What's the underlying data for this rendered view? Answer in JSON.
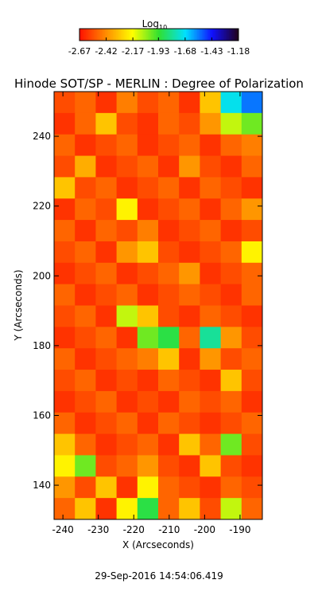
{
  "chart_data": {
    "type": "heatmap",
    "title": "Hinode SOT/SP - MERLIN : Degree of Polarization",
    "x_label": "X (Arcseconds)",
    "y_label": "Y (Arcseconds)",
    "footer": "29-Sep-2016 14:54:06.419",
    "xlim": [
      -242.5,
      -183.7
    ],
    "ylim": [
      130.2,
      252.8
    ],
    "xticks": [
      -240,
      -230,
      -220,
      -210,
      -200,
      -190
    ],
    "yticks": [
      140,
      160,
      180,
      200,
      220,
      240
    ],
    "colorbar": {
      "label": "Log",
      "label_subscript": "10",
      "lim": [
        -2.67,
        -1.18
      ],
      "ticks": [
        -2.67,
        -2.42,
        -2.17,
        -1.93,
        -1.68,
        -1.43,
        -1.18
      ],
      "colormap": [
        "#ff1000",
        "#ff8c00",
        "#ffff00",
        "#30e030",
        "#00e0ff",
        "#1010ff",
        "#200018"
      ]
    },
    "z": [
      [
        -2.55,
        -2.5,
        -2.6,
        -2.45,
        -2.55,
        -2.5,
        -2.6,
        -2.3,
        -1.7,
        -1.55
      ],
      [
        -2.6,
        -2.5,
        -2.3,
        -2.55,
        -2.6,
        -2.5,
        -2.55,
        -2.4,
        -2.1,
        -2.0
      ],
      [
        -2.5,
        -2.6,
        -2.55,
        -2.5,
        -2.6,
        -2.55,
        -2.5,
        -2.6,
        -2.5,
        -2.45
      ],
      [
        -2.55,
        -2.35,
        -2.6,
        -2.55,
        -2.5,
        -2.6,
        -2.4,
        -2.55,
        -2.6,
        -2.5
      ],
      [
        -2.3,
        -2.55,
        -2.5,
        -2.6,
        -2.55,
        -2.5,
        -2.6,
        -2.5,
        -2.55,
        -2.6
      ],
      [
        -2.6,
        -2.5,
        -2.55,
        -2.2,
        -2.6,
        -2.55,
        -2.5,
        -2.6,
        -2.5,
        -2.4
      ],
      [
        -2.5,
        -2.6,
        -2.5,
        -2.55,
        -2.45,
        -2.6,
        -2.55,
        -2.5,
        -2.6,
        -2.55
      ],
      [
        -2.55,
        -2.5,
        -2.6,
        -2.4,
        -2.3,
        -2.55,
        -2.6,
        -2.55,
        -2.5,
        -2.2
      ],
      [
        -2.6,
        -2.55,
        -2.5,
        -2.6,
        -2.55,
        -2.5,
        -2.4,
        -2.6,
        -2.55,
        -2.5
      ],
      [
        -2.5,
        -2.6,
        -2.55,
        -2.5,
        -2.6,
        -2.55,
        -2.5,
        -2.55,
        -2.6,
        -2.5
      ],
      [
        -2.55,
        -2.5,
        -2.6,
        -2.1,
        -2.3,
        -2.55,
        -2.6,
        -2.5,
        -2.55,
        -2.6
      ],
      [
        -2.6,
        -2.55,
        -2.5,
        -2.6,
        -2.0,
        -1.9,
        -2.5,
        -1.8,
        -2.4,
        -2.55
      ],
      [
        -2.5,
        -2.6,
        -2.55,
        -2.5,
        -2.45,
        -2.3,
        -2.6,
        -2.4,
        -2.55,
        -2.5
      ],
      [
        -2.55,
        -2.5,
        -2.6,
        -2.55,
        -2.6,
        -2.5,
        -2.55,
        -2.6,
        -2.3,
        -2.55
      ],
      [
        -2.6,
        -2.55,
        -2.5,
        -2.6,
        -2.55,
        -2.6,
        -2.5,
        -2.55,
        -2.5,
        -2.6
      ],
      [
        -2.5,
        -2.6,
        -2.55,
        -2.5,
        -2.6,
        -2.5,
        -2.55,
        -2.6,
        -2.55,
        -2.5
      ],
      [
        -2.3,
        -2.5,
        -2.6,
        -2.55,
        -2.5,
        -2.6,
        -2.3,
        -2.5,
        -2.0,
        -2.55
      ],
      [
        -2.2,
        -2.0,
        -2.55,
        -2.5,
        -2.4,
        -2.55,
        -2.6,
        -2.3,
        -2.55,
        -2.6
      ],
      [
        -2.4,
        -2.55,
        -2.3,
        -2.6,
        -2.2,
        -2.5,
        -2.55,
        -2.6,
        -2.5,
        -2.55
      ],
      [
        -2.5,
        -2.3,
        -2.6,
        -2.2,
        -1.9,
        -2.5,
        -2.3,
        -2.55,
        -2.1,
        -2.5
      ]
    ]
  }
}
